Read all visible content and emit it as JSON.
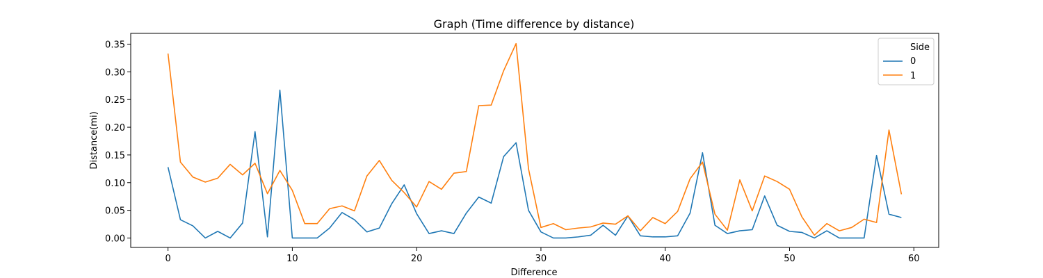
{
  "chart_data": {
    "type": "line",
    "title": "Graph (Time difference by distance)",
    "xlabel": "Difference",
    "ylabel": "Distance(mi)",
    "xlim": [
      -3,
      62
    ],
    "ylim": [
      -0.017,
      0.3695
    ],
    "xticks": [
      0,
      10,
      20,
      30,
      40,
      50,
      60
    ],
    "yticks": [
      0.0,
      0.05,
      0.1,
      0.15,
      0.2,
      0.25,
      0.3,
      0.35
    ],
    "ytick_labels": [
      "0.00",
      "0.05",
      "0.10",
      "0.15",
      "0.20",
      "0.25",
      "0.30",
      "0.35"
    ],
    "grid": false,
    "legend": {
      "title": "Side",
      "placement": "top-right"
    },
    "x": [
      0,
      1,
      2,
      3,
      4,
      5,
      6,
      7,
      8,
      9,
      10,
      11,
      12,
      13,
      14,
      15,
      16,
      17,
      18,
      19,
      20,
      21,
      22,
      23,
      24,
      25,
      26,
      27,
      28,
      29,
      30,
      31,
      32,
      33,
      34,
      35,
      36,
      37,
      38,
      39,
      40,
      41,
      42,
      43,
      44,
      45,
      46,
      47,
      48,
      49,
      50,
      51,
      52,
      53,
      54,
      55,
      56,
      57,
      58,
      59
    ],
    "series": [
      {
        "name": "0",
        "color": "#1f77b4",
        "values": [
          0.128,
          0.033,
          0.022,
          0.0,
          0.012,
          0.0,
          0.027,
          0.192,
          0.002,
          0.267,
          0.0,
          0.0,
          0.0,
          0.018,
          0.046,
          0.033,
          0.011,
          0.018,
          0.062,
          0.096,
          0.044,
          0.008,
          0.013,
          0.008,
          0.045,
          0.074,
          0.063,
          0.147,
          0.172,
          0.05,
          0.011,
          0.0,
          0.0,
          0.002,
          0.005,
          0.023,
          0.005,
          0.04,
          0.004,
          0.002,
          0.002,
          0.004,
          0.045,
          0.154,
          0.023,
          0.008,
          0.013,
          0.015,
          0.076,
          0.023,
          0.012,
          0.01,
          0.0,
          0.013,
          0.0,
          0.0,
          0.0,
          0.149,
          0.043,
          0.037
        ]
      },
      {
        "name": "1",
        "color": "#ff7f0e",
        "values": [
          0.333,
          0.137,
          0.11,
          0.101,
          0.108,
          0.133,
          0.114,
          0.135,
          0.08,
          0.122,
          0.086,
          0.026,
          0.026,
          0.053,
          0.058,
          0.049,
          0.112,
          0.14,
          0.104,
          0.082,
          0.056,
          0.102,
          0.088,
          0.117,
          0.12,
          0.239,
          0.24,
          0.302,
          0.351,
          0.125,
          0.019,
          0.026,
          0.015,
          0.018,
          0.02,
          0.027,
          0.025,
          0.04,
          0.013,
          0.037,
          0.026,
          0.048,
          0.107,
          0.137,
          0.043,
          0.014,
          0.105,
          0.049,
          0.112,
          0.102,
          0.088,
          0.038,
          0.005,
          0.026,
          0.013,
          0.019,
          0.034,
          0.028,
          0.195,
          0.079
        ]
      }
    ]
  }
}
